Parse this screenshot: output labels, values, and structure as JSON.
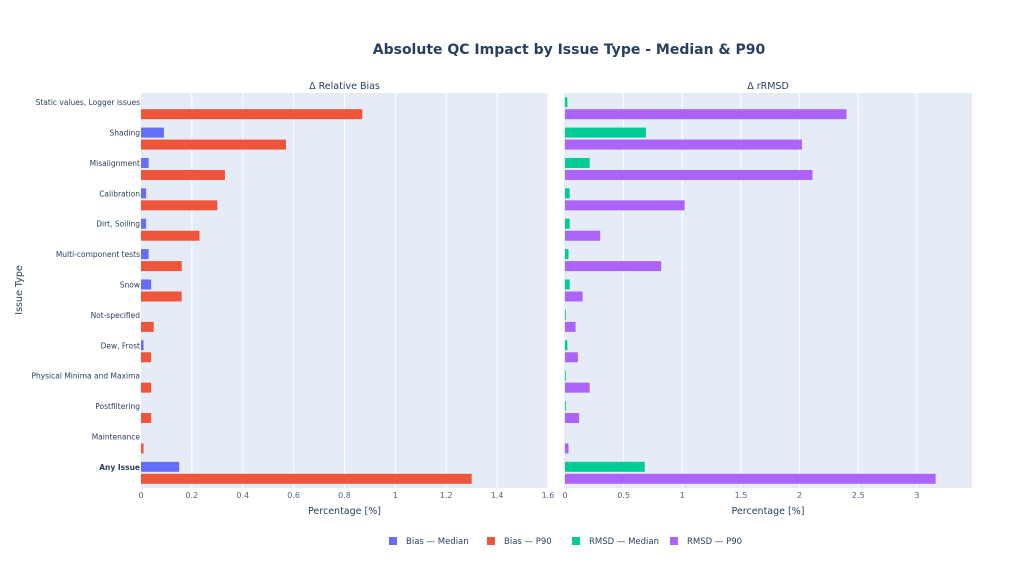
{
  "chart_data": {
    "type": "bar",
    "orientation": "horizontal",
    "title": "Absolute QC Impact by Issue Type - Median & P90",
    "ylabel": "Issue Type",
    "categories": [
      "Static values, Logger issues",
      "Shading",
      "Misalignment",
      "Calibration",
      "Dirt, Soiling",
      "Multi-component tests",
      "Snow",
      "Not-specified",
      "Dew, Frost",
      "Physical Minima and Maxima",
      "Postfiltering",
      "Maintenance",
      "Any Issue"
    ],
    "panels": [
      {
        "subtitle": "Δ Relative Bias",
        "xlabel": "Percentage [%]",
        "xlim": [
          0,
          1.6
        ],
        "xticks": [
          "0",
          "0.2",
          "0.4",
          "0.6",
          "0.8",
          "1",
          "1.2",
          "1.4",
          "1.6"
        ],
        "xtick_values": [
          0,
          0.2,
          0.4,
          0.6,
          0.8,
          1,
          1.2,
          1.4,
          1.6
        ],
        "series": [
          {
            "name": "Bias — Median",
            "color": "#636efa",
            "values": [
              0,
              0.09,
              0.03,
              0.02,
              0.02,
              0.03,
              0.04,
              0,
              0.01,
              0,
              0,
              0,
              0.15
            ]
          },
          {
            "name": "Bias — P90",
            "color": "#ef553b",
            "values": [
              0.87,
              0.57,
              0.33,
              0.3,
              0.23,
              0.16,
              0.16,
              0.05,
              0.04,
              0.04,
              0.04,
              0.01,
              1.3
            ]
          }
        ]
      },
      {
        "subtitle": "Δ rRMSD",
        "xlabel": "Percentage [%]",
        "xlim": [
          0,
          3.47
        ],
        "xticks": [
          "0",
          "0.5",
          "1",
          "1.5",
          "2",
          "2.5",
          "3"
        ],
        "xtick_values": [
          0,
          0.5,
          1,
          1.5,
          2,
          2.5,
          3
        ],
        "series": [
          {
            "name": "RMSD — Median",
            "color": "#00cc96",
            "values": [
              0.02,
              0.69,
              0.21,
              0.04,
              0.04,
              0.03,
              0.04,
              0.005,
              0.02,
              0.005,
              0.005,
              0,
              0.68
            ]
          },
          {
            "name": "RMSD — P90",
            "color": "#ab63fa",
            "values": [
              2.4,
              2.02,
              2.11,
              1.02,
              0.3,
              0.82,
              0.15,
              0.09,
              0.11,
              0.21,
              0.12,
              0.03,
              3.16
            ]
          }
        ]
      }
    ],
    "legend": {
      "placement": "bottom-center",
      "entries": [
        "Bias — Median",
        "Bias — P90",
        "RMSD — Median",
        "RMSD — P90"
      ]
    },
    "grid": true
  }
}
